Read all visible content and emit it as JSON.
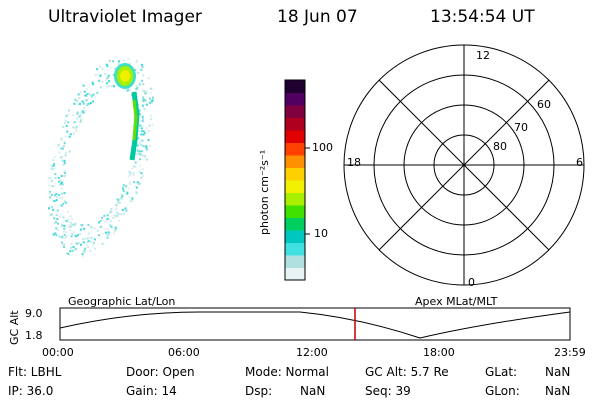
{
  "header": {
    "instrument": "Ultraviolet Imager",
    "date": "18 Jun 07",
    "time": "13:54:54 UT"
  },
  "colorbar": {
    "unit_label": "photon cm⁻²s⁻¹",
    "ticks": [
      "100",
      "10"
    ],
    "colors": [
      "#e8f4f4",
      "#b0e0e0",
      "#40e0e0",
      "#00c8c0",
      "#00d060",
      "#40e000",
      "#a8f000",
      "#f0f000",
      "#ffd000",
      "#ff9000",
      "#ff4000",
      "#e00000",
      "#b00020",
      "#800040",
      "#500060",
      "#200030"
    ]
  },
  "polar": {
    "labels": {
      "top": "12",
      "left": "18",
      "right": "6",
      "bottom": "0"
    },
    "lat_labels": [
      "60",
      "70",
      "80"
    ]
  },
  "timeline": {
    "left_title": "Geographic Lat/Lon",
    "right_title": "Apex MLat/MLT",
    "y_axis_label": "GC Alt",
    "y_ticks": [
      "9.0",
      "1.8"
    ],
    "x_ticks": [
      "00:00",
      "06:00",
      "12:00",
      "18:00",
      "23:59"
    ],
    "marker_time": "13:54:54"
  },
  "info": {
    "flt": "Flt: LBHL",
    "door": "Door: Open",
    "mode": "Mode: Normal",
    "gc_alt": "GC Alt: 5.7 Re",
    "glat_key": "GLat:",
    "glat_val": "NaN",
    "ip": "IP: 36.0",
    "gain": "Gain: 14",
    "dsp_key": "Dsp:",
    "dsp_val": "NaN",
    "seq": "Seq: 39",
    "glon_key": "GLon:",
    "glon_val": "NaN"
  }
}
